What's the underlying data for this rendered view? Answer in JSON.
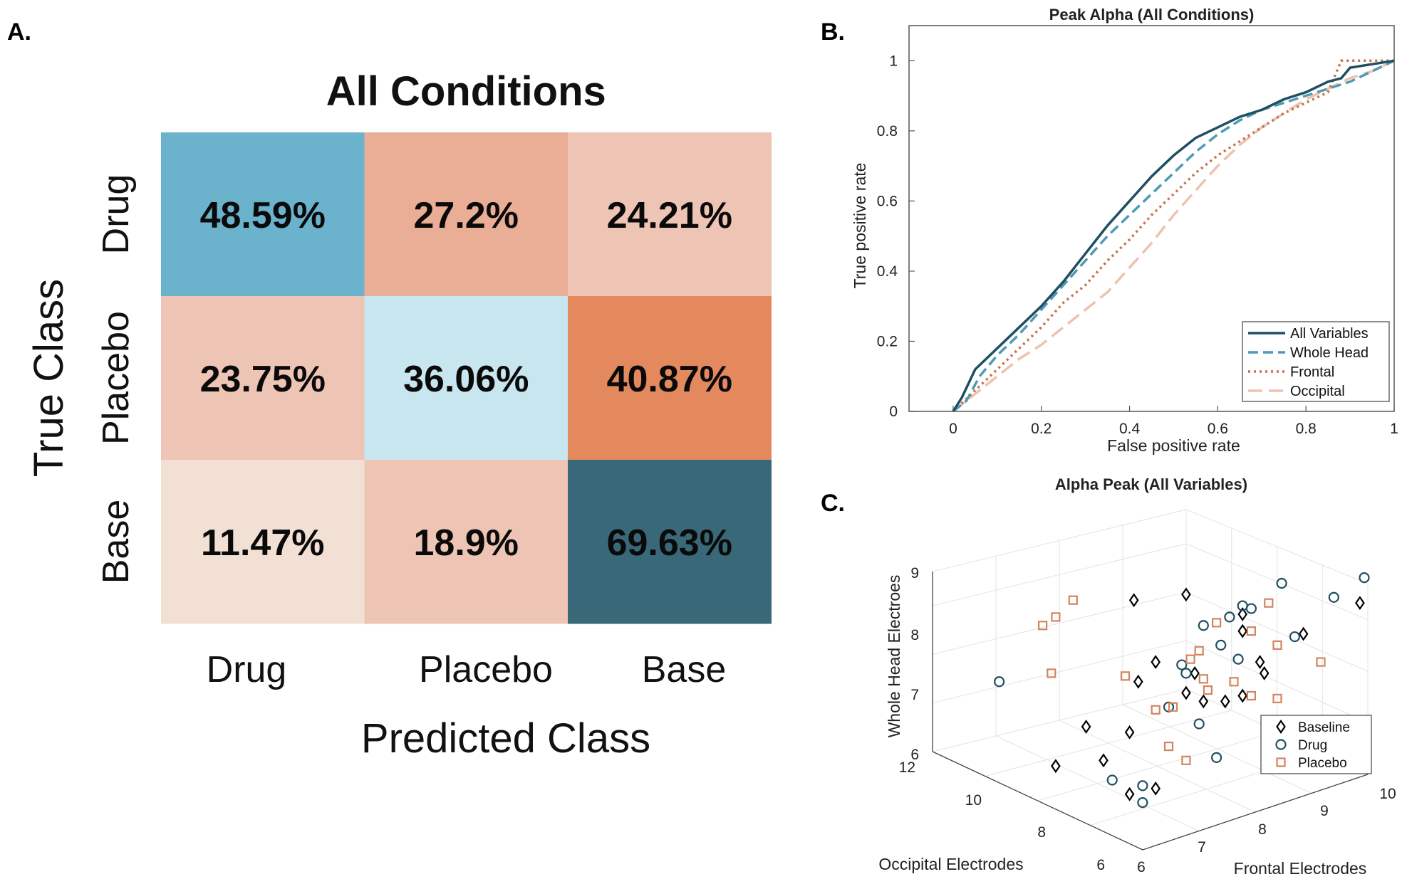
{
  "panel_labels": {
    "a": "A.",
    "b": "B.",
    "c": "C."
  },
  "colors": {
    "blue_light": "#c8e6ef",
    "blue_mid": "#6bb2cd",
    "blue_dark": "#396979",
    "peach_pale": "#f2e0d5",
    "peach": "#eec5b4",
    "peach_mid": "#e9ae95",
    "orange": "#e4885e",
    "roc_all": "#1f4f62",
    "roc_whole": "#4f9bb5",
    "roc_frontal": "#c7724a",
    "roc_occipital": "#edc2b0",
    "drug_marker": "#1f4f62",
    "placebo_marker": "#d4845c",
    "baseline_marker": "#000000"
  },
  "chart_data": [
    {
      "type": "heatmap",
      "title": "All Conditions",
      "xlabel": "Predicted Class",
      "ylabel": "True Class",
      "x_categories": [
        "Drug",
        "Placebo",
        "Base"
      ],
      "y_categories": [
        "Drug",
        "Placebo",
        "Base"
      ],
      "cells": [
        [
          "48.59%",
          "27.2%",
          "24.21%"
        ],
        [
          "23.75%",
          "36.06%",
          "40.87%"
        ],
        [
          "11.47%",
          "18.9%",
          "69.63%"
        ]
      ],
      "values": [
        [
          48.59,
          27.2,
          24.21
        ],
        [
          23.75,
          36.06,
          40.87
        ],
        [
          11.47,
          18.9,
          69.63
        ]
      ]
    },
    {
      "type": "line",
      "title": "Peak Alpha (All Conditions)",
      "xlabel": "False positive rate",
      "ylabel": "True positive rate",
      "xlim": [
        -0.1,
        1
      ],
      "ylim": [
        0,
        1.1
      ],
      "xticks": [
        "0",
        "0.2",
        "0.4",
        "0.6",
        "0.8",
        "1"
      ],
      "yticks": [
        "0",
        "0.2",
        "0.4",
        "0.6",
        "0.8",
        "1"
      ],
      "legend_position": "bottom-right",
      "series": [
        {
          "name": "All Variables",
          "style": "solid",
          "x": [
            0,
            0.02,
            0.05,
            0.1,
            0.15,
            0.2,
            0.25,
            0.3,
            0.35,
            0.4,
            0.45,
            0.5,
            0.55,
            0.6,
            0.65,
            0.7,
            0.75,
            0.8,
            0.85,
            0.88,
            0.9,
            0.95,
            1
          ],
          "y": [
            0,
            0.04,
            0.12,
            0.18,
            0.24,
            0.3,
            0.37,
            0.45,
            0.53,
            0.6,
            0.67,
            0.73,
            0.78,
            0.81,
            0.84,
            0.86,
            0.89,
            0.91,
            0.94,
            0.95,
            0.98,
            0.99,
            1
          ]
        },
        {
          "name": "Whole Head",
          "style": "dashed",
          "x": [
            0,
            0.03,
            0.06,
            0.1,
            0.15,
            0.2,
            0.25,
            0.3,
            0.35,
            0.4,
            0.45,
            0.5,
            0.55,
            0.6,
            0.65,
            0.7,
            0.75,
            0.8,
            0.85,
            0.9,
            0.95,
            1
          ],
          "y": [
            0,
            0.03,
            0.1,
            0.16,
            0.22,
            0.29,
            0.36,
            0.43,
            0.5,
            0.56,
            0.62,
            0.68,
            0.74,
            0.79,
            0.83,
            0.86,
            0.88,
            0.9,
            0.92,
            0.94,
            0.97,
            1
          ]
        },
        {
          "name": "Frontal",
          "style": "dotted",
          "x": [
            0,
            0.05,
            0.1,
            0.15,
            0.2,
            0.25,
            0.3,
            0.35,
            0.4,
            0.45,
            0.5,
            0.55,
            0.6,
            0.65,
            0.7,
            0.75,
            0.8,
            0.85,
            0.88,
            0.9,
            0.95,
            1
          ],
          "y": [
            0,
            0.06,
            0.12,
            0.18,
            0.24,
            0.31,
            0.36,
            0.43,
            0.49,
            0.56,
            0.62,
            0.68,
            0.73,
            0.77,
            0.81,
            0.85,
            0.88,
            0.91,
            1.0,
            1.0,
            1.0,
            1.0
          ]
        },
        {
          "name": "Occipital",
          "style": "longdash",
          "x": [
            0,
            0.05,
            0.1,
            0.15,
            0.2,
            0.25,
            0.3,
            0.35,
            0.4,
            0.45,
            0.5,
            0.55,
            0.6,
            0.65,
            0.7,
            0.75,
            0.8,
            0.85,
            0.9,
            0.95,
            1
          ],
          "y": [
            0,
            0.05,
            0.1,
            0.15,
            0.19,
            0.24,
            0.29,
            0.34,
            0.41,
            0.48,
            0.56,
            0.63,
            0.7,
            0.76,
            0.81,
            0.85,
            0.89,
            0.92,
            0.95,
            0.97,
            1
          ]
        }
      ]
    },
    {
      "type": "scatter",
      "subtype": "scatter3d",
      "title": "Alpha Peak (All Variables)",
      "xlabel": "Frontal Electrodes",
      "ylabel": "Occipital Electrodes",
      "zlabel": "Whole Head Electroes",
      "xticks": [
        "6",
        "7",
        "8",
        "9",
        "10"
      ],
      "yticks": [
        "6",
        "8",
        "10",
        "12"
      ],
      "zticks": [
        "6",
        "7",
        "8",
        "9"
      ],
      "legend_position": "right",
      "series": [
        {
          "name": "Baseline",
          "marker": "diamond",
          "points": [
            [
              0.29,
              0.25
            ],
            [
              0.36,
              0.39
            ],
            [
              0.4,
              0.27
            ],
            [
              0.46,
              0.37
            ],
            [
              0.63,
              0.48
            ],
            [
              0.68,
              0.48
            ],
            [
              0.52,
              0.62
            ],
            [
              0.47,
              0.84
            ],
            [
              0.59,
              0.86
            ],
            [
              0.61,
              0.58
            ],
            [
              0.48,
              0.55
            ],
            [
              0.72,
              0.73
            ],
            [
              0.72,
              0.79
            ],
            [
              0.86,
              0.72
            ],
            [
              0.72,
              0.5
            ],
            [
              0.76,
              0.62
            ],
            [
              0.77,
              0.58
            ],
            [
              0.46,
              0.15
            ],
            [
              0.52,
              0.17
            ],
            [
              0.88,
              0.39
            ],
            [
              0.99,
              0.83
            ],
            [
              0.59,
              0.51
            ]
          ]
        },
        {
          "name": "Drug",
          "marker": "circle",
          "points": [
            [
              0.16,
              0.55
            ],
            [
              0.49,
              0.18
            ],
            [
              0.66,
              0.28
            ],
            [
              0.72,
              0.82
            ],
            [
              0.81,
              0.9
            ],
            [
              0.93,
              0.85
            ],
            [
              1.0,
              0.92
            ],
            [
              0.84,
              0.71
            ],
            [
              0.71,
              0.63
            ],
            [
              0.67,
              0.68
            ],
            [
              0.69,
              0.78
            ],
            [
              0.74,
              0.81
            ],
            [
              0.58,
              0.61
            ],
            [
              0.55,
              0.46
            ],
            [
              0.59,
              0.58
            ],
            [
              0.42,
              0.2
            ],
            [
              0.49,
              0.12
            ],
            [
              0.63,
              0.75
            ],
            [
              0.62,
              0.4
            ]
          ]
        },
        {
          "name": "Placebo",
          "marker": "square",
          "points": [
            [
              0.26,
              0.75
            ],
            [
              0.29,
              0.78
            ],
            [
              0.33,
              0.84
            ],
            [
              0.28,
              0.58
            ],
            [
              0.45,
              0.57
            ],
            [
              0.52,
              0.45
            ],
            [
              0.56,
              0.46
            ],
            [
              0.6,
              0.63
            ],
            [
              0.62,
              0.66
            ],
            [
              0.63,
              0.56
            ],
            [
              0.64,
              0.52
            ],
            [
              0.66,
              0.76
            ],
            [
              0.74,
              0.73
            ],
            [
              0.78,
              0.83
            ],
            [
              0.8,
              0.68
            ],
            [
              0.59,
              0.27
            ],
            [
              0.55,
              0.32
            ],
            [
              0.7,
              0.55
            ],
            [
              0.74,
              0.5
            ],
            [
              0.8,
              0.49
            ],
            [
              0.9,
              0.62
            ]
          ]
        }
      ]
    }
  ]
}
